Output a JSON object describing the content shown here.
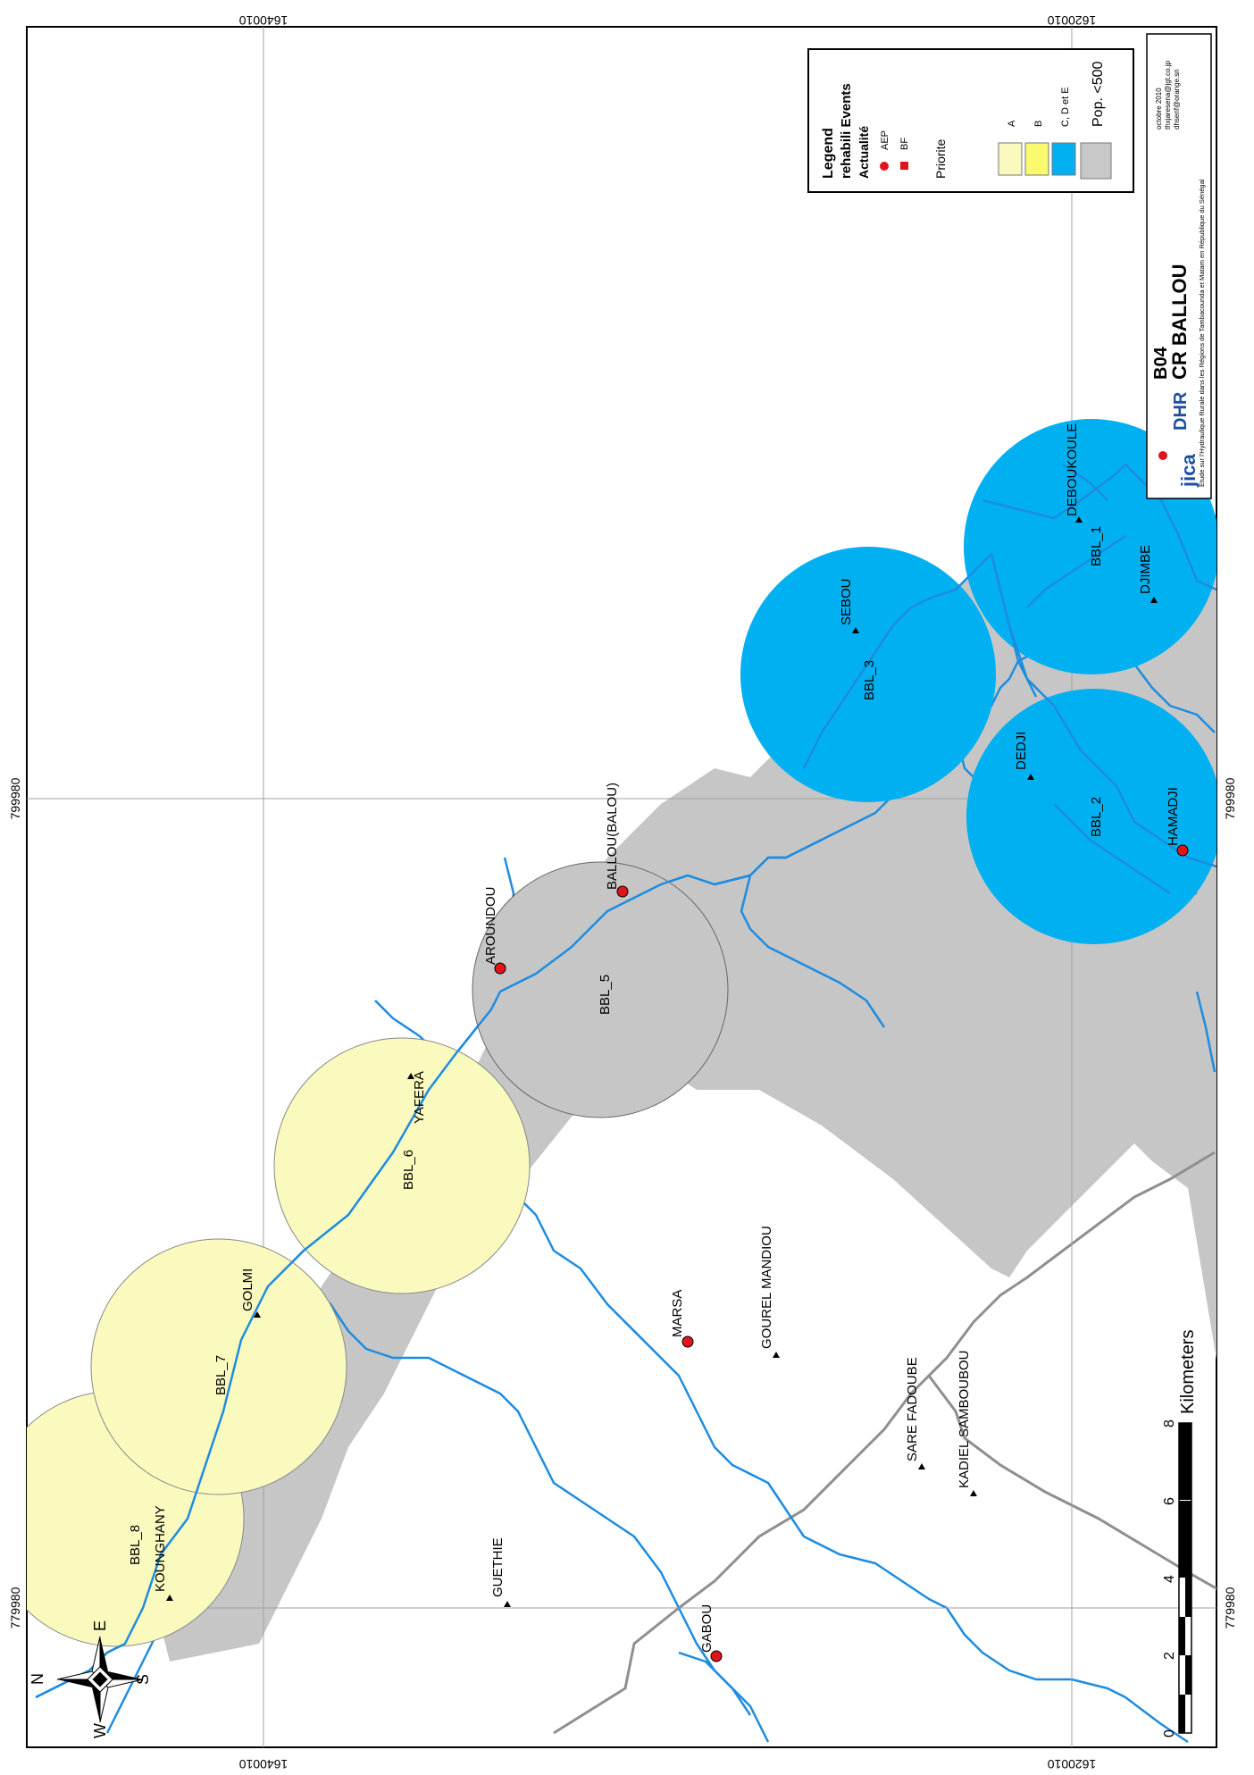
{
  "coords": {
    "top_left": "1640010",
    "top_right": "1620010",
    "bottom_left": "1640010",
    "bottom_right": "1620010",
    "left_top": "799980",
    "left_bottom": "779980",
    "right_top": "799980",
    "right_bottom": "779980"
  },
  "legend": {
    "title": "Legend",
    "subtitle": "rehabili Events",
    "actualite": "Actualité",
    "items": [
      {
        "label": "AEP",
        "color": "#e0141b"
      },
      {
        "label": "BF",
        "color": "#e0141b"
      }
    ],
    "priorite": "Priorite",
    "priority_items": [
      {
        "label": "A",
        "color": "#fafabf"
      },
      {
        "label": "B",
        "color": "#fafa6e"
      },
      {
        "label": "C, D et E",
        "color": "#00b0f0"
      },
      {
        "label": "Pop. <500",
        "color": "#c8c8c8"
      }
    ]
  },
  "title_block": {
    "code": "B04",
    "name": "CR BALLOU",
    "jica": "jica",
    "dhr": "DHR",
    "date": "octobre 2010",
    "email1": "thxjaresena@jgt.co.jp",
    "email2": "dhsenf@orange.sn",
    "description": "Etude sur l'Hydraulique Rurale dans les Régions de Tambacounda et Matam en République du Sénégal"
  },
  "scale": {
    "ticks": [
      "0",
      "2",
      "4",
      "6",
      "8"
    ],
    "unit": "Kilometers"
  },
  "compass": {
    "n": "N",
    "s": "S",
    "e": "E",
    "w": "W"
  },
  "zones": [
    {
      "name": "BBL_1",
      "priority": "C, D et E"
    },
    {
      "name": "BBL_2",
      "priority": "C, D et E"
    },
    {
      "name": "BBL_3",
      "priority": "C, D et E"
    },
    {
      "name": "BBL_5",
      "priority": "Pop. <500"
    },
    {
      "name": "BBL_6",
      "priority": "A"
    },
    {
      "name": "BBL_7",
      "priority": "A"
    },
    {
      "name": "BBL_8",
      "priority": "A"
    }
  ],
  "villages": {
    "deboukoule": "DEBOUKOULE",
    "djimbe": "DJIMBE",
    "sebou": "SEBOU",
    "dedji": "DEDJI",
    "hamadji": "HAMADJI",
    "ballou": "BALLOU(BALOU)",
    "aroundou": "AROUNDOU",
    "yafera": "YAFERA",
    "golmi": "GOLMI",
    "kounghany": "KOUNGHANY",
    "guethie": "GUETHIE",
    "marsa": "MARSA",
    "gourel_mandiou": "GOUREL MANDIOU",
    "sare_fadoube": "SARE FADOUBE",
    "kadiel_samboubou": "KADIEL SAMBOUBOU",
    "gabou": "GABOU"
  }
}
